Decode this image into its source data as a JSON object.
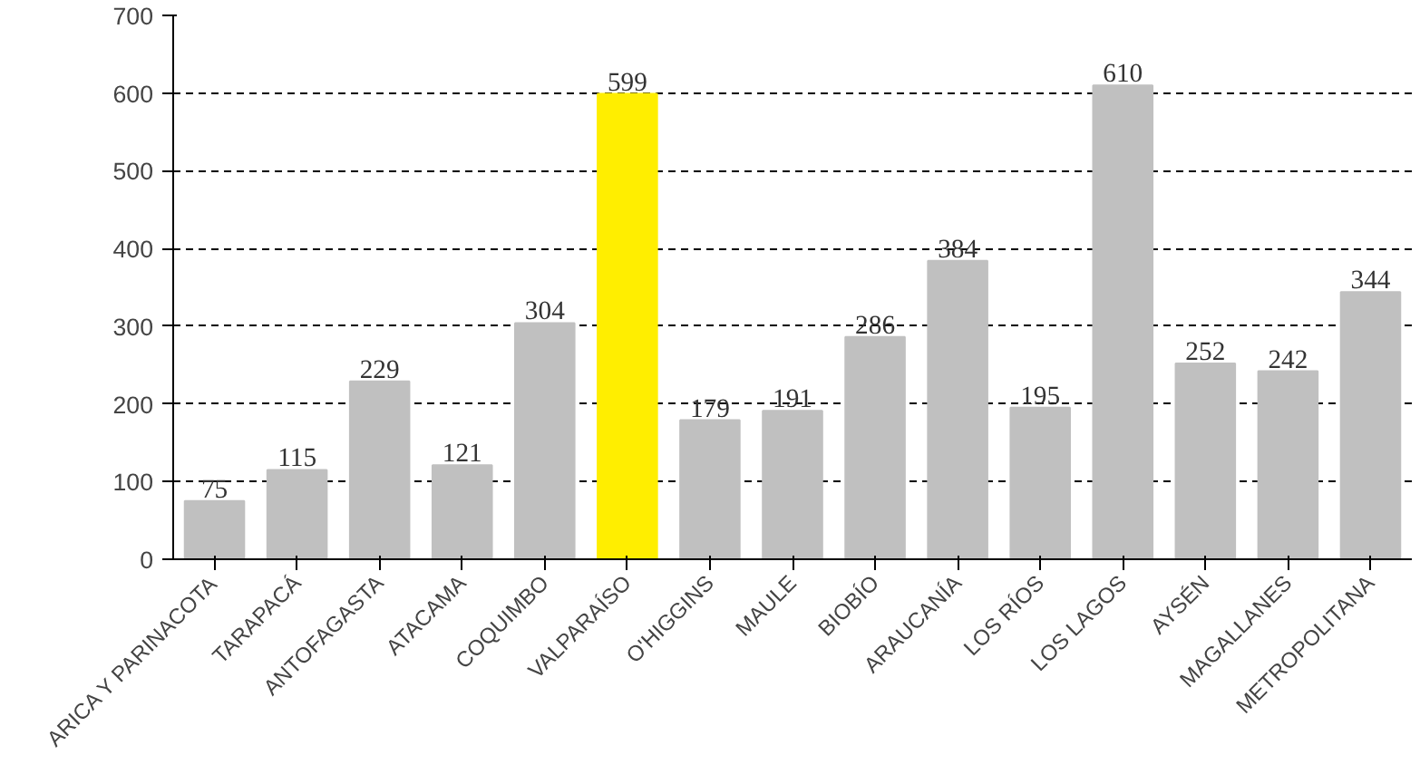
{
  "chart_data": {
    "type": "bar",
    "categories": [
      "ARICA Y PARINACOTA",
      "TARAPACÁ",
      "ANTOFAGASTA",
      "ATACAMA",
      "COQUIMBO",
      "VALPARAÍSO",
      "O'HIGGINS",
      "MAULE",
      "BIOBÍO",
      "ARAUCANÍA",
      "LOS RÍOS",
      "LOS LAGOS",
      "AYSÉN",
      "MAGALLANES",
      "METROPOLITANA"
    ],
    "values": [
      75,
      115,
      229,
      121,
      304,
      599,
      179,
      191,
      286,
      384,
      195,
      610,
      252,
      242,
      344
    ],
    "colors": [
      "#c0c0c0",
      "#c0c0c0",
      "#c0c0c0",
      "#c0c0c0",
      "#c0c0c0",
      "#ffee00",
      "#c0c0c0",
      "#c0c0c0",
      "#c0c0c0",
      "#c0c0c0",
      "#c0c0c0",
      "#c0c0c0",
      "#c0c0c0",
      "#c0c0c0",
      "#c0c0c0"
    ],
    "ylim": [
      0,
      700
    ],
    "yticks": [
      0,
      100,
      200,
      300,
      400,
      500,
      600,
      700
    ],
    "grid": "y",
    "data_labels": true
  }
}
